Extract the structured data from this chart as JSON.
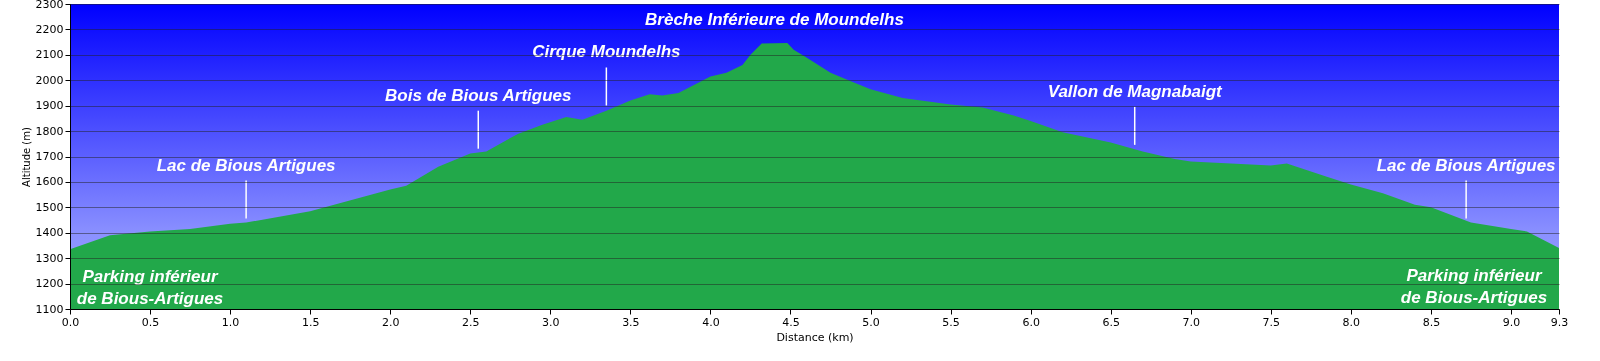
{
  "chart_data": {
    "type": "area",
    "xlabel": "Distance   (km)",
    "ylabel": "Altitude (m)",
    "x": [
      0,
      0.25,
      0.5,
      0.75,
      1.0,
      1.1,
      1.5,
      2.0,
      2.1,
      2.3,
      2.5,
      2.6,
      2.8,
      2.95,
      3.1,
      3.2,
      3.35,
      3.5,
      3.62,
      3.7,
      3.8,
      4.0,
      4.1,
      4.2,
      4.25,
      4.32,
      4.48,
      4.52,
      4.6,
      4.75,
      4.9,
      5.0,
      5.2,
      5.5,
      5.7,
      5.9,
      6.0,
      6.2,
      6.5,
      6.7,
      6.9,
      7.0,
      7.5,
      7.6,
      7.85,
      8.0,
      8.2,
      8.4,
      8.5,
      8.75,
      9.0,
      9.1,
      9.3
    ],
    "series": [
      {
        "color": "#22a84a",
        "values": [
          1335,
          1390,
          1405,
          1415,
          1435,
          1440,
          1485,
          1570,
          1585,
          1660,
          1712,
          1720,
          1790,
          1825,
          1855,
          1845,
          1880,
          1920,
          1945,
          1940,
          1950,
          2015,
          2030,
          2060,
          2100,
          2145,
          2147,
          2120,
          2090,
          2030,
          1990,
          1965,
          1930,
          1905,
          1893,
          1860,
          1840,
          1795,
          1755,
          1720,
          1690,
          1680,
          1665,
          1672,
          1620,
          1590,
          1555,
          1510,
          1500,
          1440,
          1415,
          1405,
          1340
        ]
      }
    ],
    "xlim": [
      0,
      9.3
    ],
    "ylim": [
      1100,
      2300
    ],
    "xticks": [
      {
        "value": 0,
        "label": "0.0"
      },
      {
        "value": 0.5,
        "label": "0.5"
      },
      {
        "value": 1,
        "label": "1.0"
      },
      {
        "value": 1.5,
        "label": "1.5"
      },
      {
        "value": 2,
        "label": "2.0"
      },
      {
        "value": 2.5,
        "label": "2.5"
      },
      {
        "value": 3,
        "label": "3.0"
      },
      {
        "value": 3.5,
        "label": "3.5"
      },
      {
        "value": 4,
        "label": "4.0"
      },
      {
        "value": 4.5,
        "label": "4.5"
      },
      {
        "value": 5,
        "label": "5.0"
      },
      {
        "value": 5.5,
        "label": "5.5"
      },
      {
        "value": 6,
        "label": "6.0"
      },
      {
        "value": 6.5,
        "label": "6.5"
      },
      {
        "value": 7,
        "label": "7.0"
      },
      {
        "value": 7.5,
        "label": "7.5"
      },
      {
        "value": 8,
        "label": "8.0"
      },
      {
        "value": 8.5,
        "label": "8.5"
      },
      {
        "value": 9,
        "label": "9.0"
      },
      {
        "value": 9.3,
        "label": "9.3"
      }
    ],
    "yticks": [
      1100,
      1200,
      1300,
      1400,
      1500,
      1600,
      1700,
      1800,
      1900,
      2000,
      2100,
      2200,
      2300
    ],
    "grid": "y",
    "annotations": [
      {
        "text": "Parking inférieur\nde Bious-Artigues",
        "x": 0,
        "y": 1335
      },
      {
        "text": "Lac de Bious Artigues",
        "x": 1.1,
        "y": 1440
      },
      {
        "text": "Bois de Bious Artigues",
        "x": 2.55,
        "y": 1715
      },
      {
        "text": "Cirque Moundelhs",
        "x": 3.35,
        "y": 1885
      },
      {
        "text": "Brèche Inférieure de Moundelhs",
        "x": 4.4,
        "y": 2147
      },
      {
        "text": "Vallon de Magnabaigt",
        "x": 6.65,
        "y": 1730
      },
      {
        "text": "Lac de Bious Artigues",
        "x": 8.72,
        "y": 1440
      },
      {
        "text": "Parking inférieur\nde Bious-Artigues",
        "x": 9.3,
        "y": 1340
      }
    ]
  }
}
